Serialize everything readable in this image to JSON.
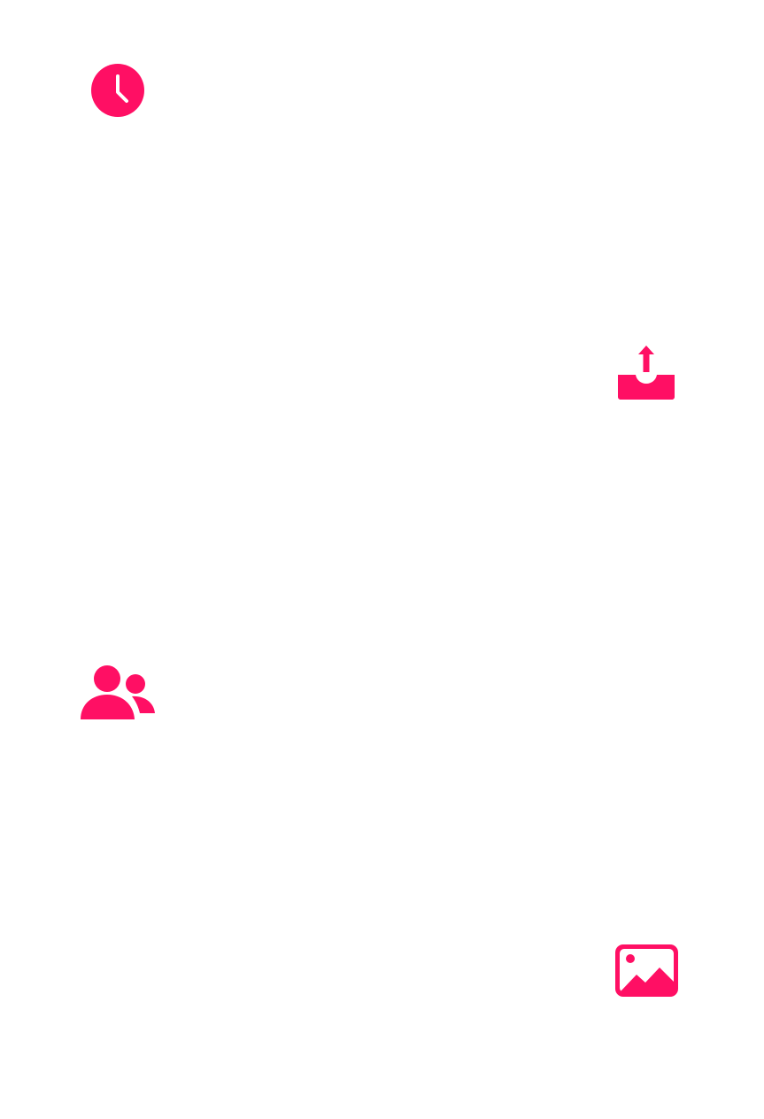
{
  "accent_color": "#ff0f64",
  "background_color": "#ffffff",
  "icons": [
    {
      "name": "clock-icon"
    },
    {
      "name": "upload-tray-icon"
    },
    {
      "name": "people-icon"
    },
    {
      "name": "image-icon"
    }
  ]
}
